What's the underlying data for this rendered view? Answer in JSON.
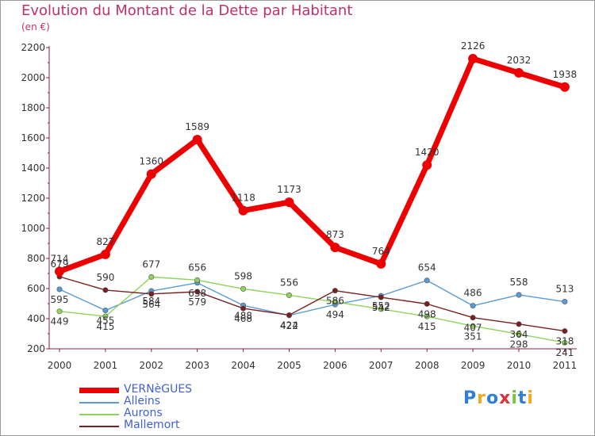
{
  "chart_data": {
    "type": "line",
    "title": "Evolution du Montant de la Dette par Habitant",
    "subtitle": "(en €)",
    "categories": [
      "2000",
      "2001",
      "2002",
      "2003",
      "2004",
      "2005",
      "2006",
      "2007",
      "2008",
      "2009",
      "2010",
      "2011"
    ],
    "ylim": [
      200,
      2200
    ],
    "yticks": [
      200,
      400,
      600,
      800,
      1000,
      1200,
      1400,
      1600,
      1800,
      2000,
      2200
    ],
    "grid": false,
    "legend_position": "bottom-left",
    "series": [
      {
        "name": "VERNèGUES",
        "color": "#ee0000",
        "values": [
          714,
          827,
          1360,
          1589,
          1118,
          1173,
          873,
          764,
          1420,
          2126,
          2032,
          1938
        ],
        "labels": [
          "714",
          "827",
          "1360",
          "1589",
          "1118",
          "1173",
          "873",
          "764",
          "1420",
          "2126",
          "2032",
          "1938"
        ]
      },
      {
        "name": "Alleins",
        "color": "#5b9bd5",
        "values": [
          595,
          455,
          584,
          638,
          488,
          422,
          494,
          552,
          654,
          486,
          558,
          513
        ],
        "labels": [
          "595",
          "455",
          "584",
          "638",
          "488",
          "422",
          "494",
          "552",
          "654",
          "486",
          "558",
          "513"
        ]
      },
      {
        "name": "Aurons",
        "color": "#8fd45a",
        "values": [
          449,
          415,
          677,
          656,
          598,
          556,
          511,
          464,
          415,
          351,
          298,
          241
        ],
        "labels": [
          "449",
          "415",
          "677",
          "656",
          "598",
          "556",
          "",
          "",
          "415",
          "351",
          "298",
          "241"
        ]
      },
      {
        "name": "Mallemort",
        "color": "#7a1f1f",
        "values": [
          679,
          590,
          564,
          579,
          468,
          424,
          586,
          542,
          498,
          407,
          364,
          318
        ],
        "labels": [
          "679",
          "590",
          "564",
          "579",
          "468",
          "424",
          "586",
          "542",
          "498",
          "407",
          "364",
          "318"
        ]
      }
    ]
  },
  "logo": {
    "text": "Proxiti",
    "letters": [
      "P",
      "r",
      "o",
      "x",
      "i",
      "t",
      "i"
    ],
    "colors": [
      "#2f7fd6",
      "#f5a623",
      "#2f7fd6",
      "#d8333b",
      "#7cc242",
      "#2f7fd6",
      "#f5a623"
    ]
  }
}
